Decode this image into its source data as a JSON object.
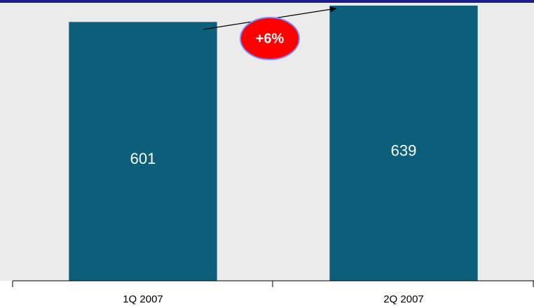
{
  "chart_data": {
    "type": "bar",
    "categories": [
      "1Q 2007",
      "2Q 2007"
    ],
    "values": [
      601,
      639
    ],
    "color": "#0b5f7a",
    "annotation": "+6%"
  }
}
